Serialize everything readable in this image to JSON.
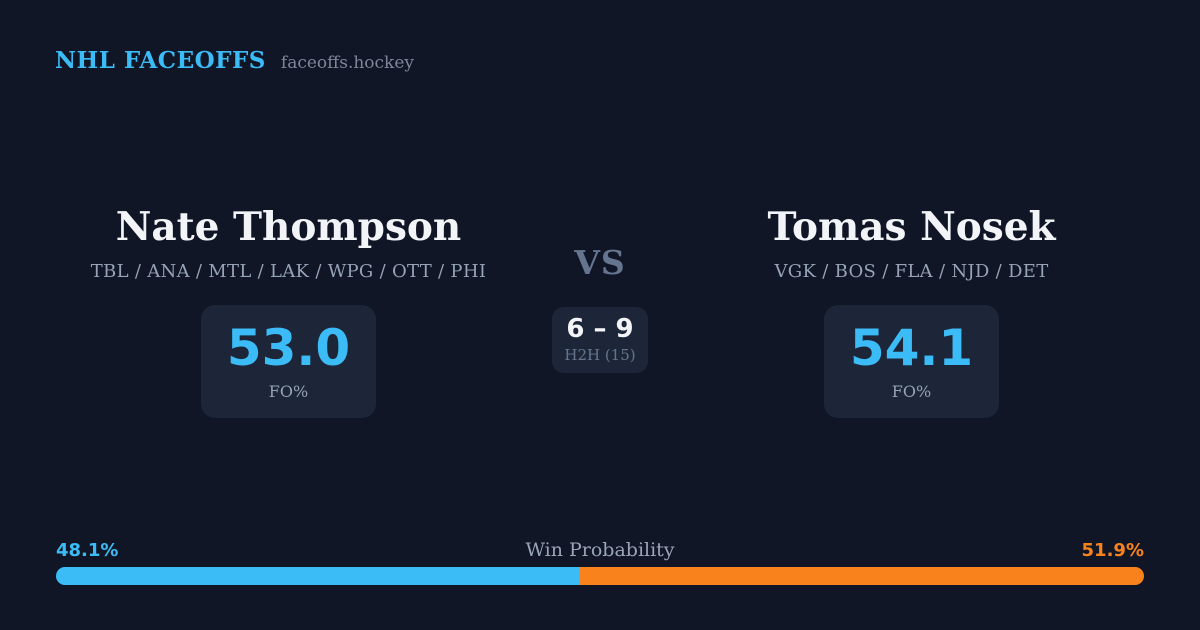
{
  "header": {
    "brand": "NHL FACEOFFS",
    "site": "faceoffs.hockey"
  },
  "players": {
    "left": {
      "name": "Nate Thompson",
      "teams": "TBL / ANA / MTL / LAK / WPG / OTT / PHI",
      "fo_pct": "53.0",
      "fo_label": "FO%"
    },
    "right": {
      "name": "Tomas Nosek",
      "teams": "VGK / BOS / FLA / NJD / DET",
      "fo_pct": "54.1",
      "fo_label": "FO%"
    }
  },
  "center": {
    "vs_label": "VS",
    "h2h_score": "6 – 9",
    "h2h_label": "H2H (15)"
  },
  "win_probability": {
    "label": "Win Probability",
    "left_value": "48.1%",
    "right_value": "51.9%",
    "left_pct": 48.1,
    "right_pct": 51.9
  },
  "colors": {
    "background": "#101626",
    "card": "#1C2638",
    "accent_blue": "#3CBCF6",
    "accent_orange": "#F9821D",
    "text_primary": "#F2F4F8",
    "text_muted": "#96A2B6",
    "text_subtle": "#66758F",
    "text_faint": "#7D8799",
    "text_light": "#9AA5B7"
  },
  "chart_data": {
    "type": "bar",
    "title": "Win Probability",
    "orientation": "horizontal",
    "stacked": true,
    "categories": [
      "Nate Thompson",
      "Tomas Nosek"
    ],
    "values": [
      48.1,
      51.9
    ],
    "unit": "%",
    "xlim": [
      0,
      100
    ],
    "colors": [
      "#3CBCF6",
      "#F9821D"
    ],
    "legend_position": "none",
    "grid": false,
    "supporting_stats": {
      "faceoff_win_pct": {
        "Nate Thompson": 53.0,
        "Tomas Nosek": 54.1
      },
      "head_to_head": {
        "Nate Thompson": 6,
        "Tomas Nosek": 9,
        "total_faceoffs": 15
      }
    }
  }
}
